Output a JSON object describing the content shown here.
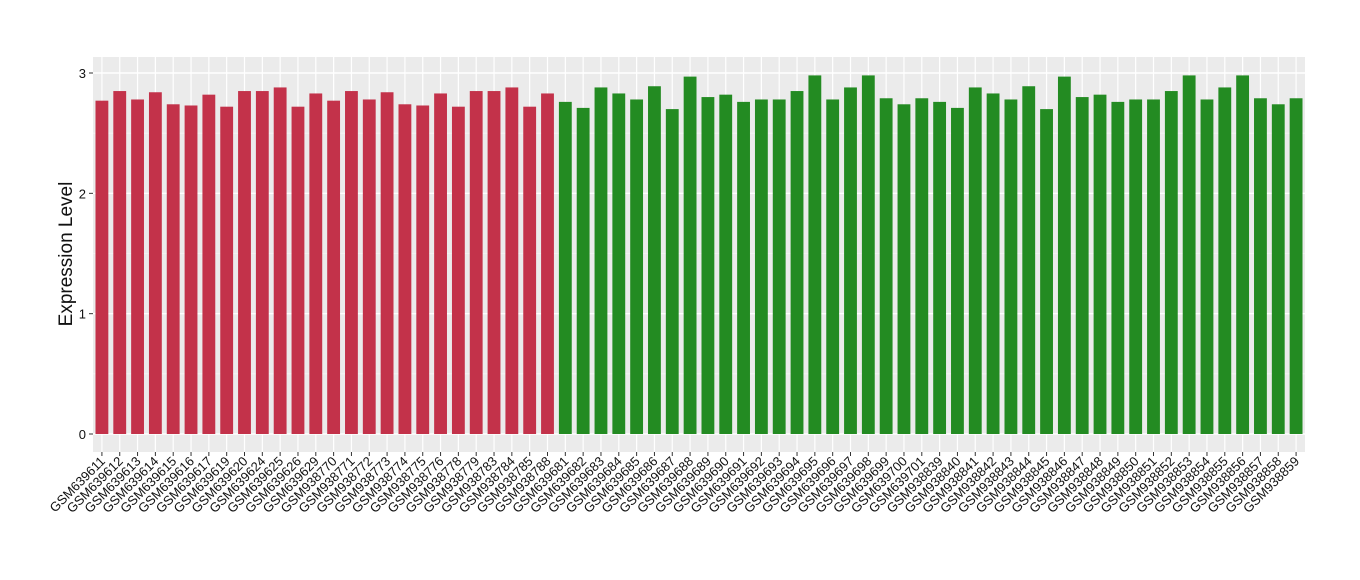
{
  "chart_data": {
    "type": "bar",
    "y_label": "Expression Level",
    "categories": [
      "GSM639611",
      "GSM639612",
      "GSM639613",
      "GSM639614",
      "GSM639615",
      "GSM639616",
      "GSM639617",
      "GSM639619",
      "GSM639620",
      "GSM639624",
      "GSM639625",
      "GSM639626",
      "GSM639629",
      "GSM938770",
      "GSM938771",
      "GSM938772",
      "GSM938773",
      "GSM938774",
      "GSM938775",
      "GSM938776",
      "GSM938778",
      "GSM938779",
      "GSM938783",
      "GSM938784",
      "GSM938785",
      "GSM938788",
      "GSM639681",
      "GSM639682",
      "GSM639683",
      "GSM639684",
      "GSM639685",
      "GSM639686",
      "GSM639687",
      "GSM639688",
      "GSM639689",
      "GSM639690",
      "GSM639691",
      "GSM639692",
      "GSM639693",
      "GSM639694",
      "GSM639695",
      "GSM639696",
      "GSM639697",
      "GSM639698",
      "GSM639699",
      "GSM639700",
      "GSM639701",
      "GSM938839",
      "GSM938840",
      "GSM938841",
      "GSM938842",
      "GSM938843",
      "GSM938844",
      "GSM938845",
      "GSM938846",
      "GSM938847",
      "GSM938848",
      "GSM938849",
      "GSM938850",
      "GSM938851",
      "GSM938852",
      "GSM938853",
      "GSM938854",
      "GSM938855",
      "GSM938856",
      "GSM938857",
      "GSM938858",
      "GSM938859"
    ],
    "values": [
      2.77,
      2.85,
      2.78,
      2.84,
      2.74,
      2.73,
      2.82,
      2.72,
      2.85,
      2.85,
      2.88,
      2.72,
      2.83,
      2.77,
      2.85,
      2.78,
      2.84,
      2.74,
      2.73,
      2.83,
      2.72,
      2.85,
      2.85,
      2.88,
      2.72,
      2.83,
      2.76,
      2.71,
      2.88,
      2.83,
      2.78,
      2.89,
      2.7,
      2.97,
      2.8,
      2.82,
      2.76,
      2.78,
      2.78,
      2.85,
      2.98,
      2.78,
      2.88,
      2.98,
      2.79,
      2.74,
      2.79,
      2.76,
      2.71,
      2.88,
      2.83,
      2.78,
      2.89,
      2.7,
      2.97,
      2.8,
      2.82,
      2.76,
      2.78,
      2.78,
      2.85,
      2.98,
      2.78,
      2.88,
      2.98,
      2.79,
      2.74,
      2.79
    ],
    "colors": [
      "#c3324a",
      "#c3324a",
      "#c3324a",
      "#c3324a",
      "#c3324a",
      "#c3324a",
      "#c3324a",
      "#c3324a",
      "#c3324a",
      "#c3324a",
      "#c3324a",
      "#c3324a",
      "#c3324a",
      "#c3324a",
      "#c3324a",
      "#c3324a",
      "#c3324a",
      "#c3324a",
      "#c3324a",
      "#c3324a",
      "#c3324a",
      "#c3324a",
      "#c3324a",
      "#c3324a",
      "#c3324a",
      "#c3324a",
      "#238b22",
      "#238b22",
      "#238b22",
      "#238b22",
      "#238b22",
      "#238b22",
      "#238b22",
      "#238b22",
      "#238b22",
      "#238b22",
      "#238b22",
      "#238b22",
      "#238b22",
      "#238b22",
      "#238b22",
      "#238b22",
      "#238b22",
      "#238b22",
      "#238b22",
      "#238b22",
      "#238b22",
      "#238b22",
      "#238b22",
      "#238b22",
      "#238b22",
      "#238b22",
      "#238b22",
      "#238b22",
      "#238b22",
      "#238b22",
      "#238b22",
      "#238b22",
      "#238b22",
      "#238b22",
      "#238b22",
      "#238b22",
      "#238b22",
      "#238b22",
      "#238b22",
      "#238b22",
      "#238b22",
      "#238b22"
    ],
    "ylim": [
      0,
      3
    ],
    "yticks": [
      0,
      1,
      2,
      3
    ],
    "grid": true
  }
}
